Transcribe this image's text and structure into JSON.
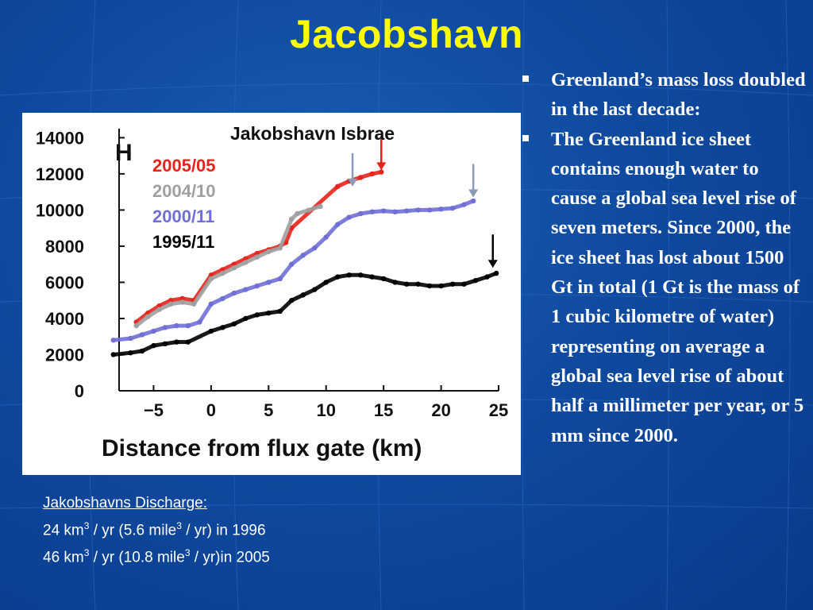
{
  "slide": {
    "title": "Jacobshavn"
  },
  "chart_data": {
    "type": "scatter",
    "panel_label": "H",
    "title": "Jakobshavn Isbrae",
    "xlabel": "Distance from flux gate (km)",
    "ylabel": "",
    "xlim": [
      -8,
      25
    ],
    "ylim": [
      0,
      14500
    ],
    "xticks": [
      "−5",
      "0",
      "5",
      "10",
      "15",
      "20",
      "25"
    ],
    "yticks": [
      "14000",
      "12000",
      "10000",
      "8000",
      "6000",
      "4000",
      "2000",
      "0"
    ],
    "series": [
      {
        "name": "2005/05",
        "color": "#e8231c",
        "x": [
          -6.5,
          -5.5,
          -4.5,
          -3.5,
          -2.5,
          -1.5,
          0,
          1,
          2,
          3,
          4,
          5,
          6,
          6.5,
          7,
          11,
          12,
          13,
          14,
          14.8
        ],
        "y": [
          3800,
          4300,
          4700,
          5000,
          5100,
          5000,
          6400,
          6700,
          7000,
          7300,
          7600,
          7800,
          8000,
          8200,
          9000,
          11300,
          11600,
          11800,
          12000,
          12100
        ]
      },
      {
        "name": "2004/10",
        "color": "#a0a0a0",
        "x": [
          -6.5,
          -5.5,
          -4.5,
          -3.5,
          -2.5,
          -1.5,
          0,
          1,
          2,
          3,
          4,
          5,
          6,
          7,
          7.5,
          8.5,
          9.5
        ],
        "y": [
          3600,
          4100,
          4500,
          4800,
          4900,
          4800,
          6200,
          6500,
          6800,
          7100,
          7400,
          7700,
          7900,
          9500,
          9800,
          10000,
          10200
        ]
      },
      {
        "name": "2000/11",
        "color": "#6f6fd6",
        "x": [
          -8.5,
          -7,
          -6,
          -5,
          -4,
          -3,
          -2,
          -1,
          0,
          1,
          2,
          3,
          4,
          5,
          6,
          7,
          8,
          9,
          10,
          11,
          12,
          13,
          14,
          15,
          16,
          17,
          18,
          19,
          20,
          21,
          22,
          22.8
        ],
        "y": [
          2800,
          2900,
          3100,
          3300,
          3500,
          3600,
          3600,
          3800,
          4800,
          5100,
          5400,
          5600,
          5800,
          6000,
          6200,
          7000,
          7500,
          7900,
          8500,
          9200,
          9600,
          9800,
          9900,
          9950,
          9900,
          9950,
          10000,
          10000,
          10050,
          10100,
          10300,
          10500
        ]
      },
      {
        "name": "1995/11",
        "color": "#000000",
        "x": [
          -8.5,
          -7,
          -6,
          -5,
          -4,
          -3,
          -2,
          0,
          1,
          2,
          3,
          4,
          5,
          6,
          7,
          8,
          9,
          10,
          11,
          12,
          13,
          14,
          15,
          16,
          17,
          18,
          19,
          20,
          21,
          22,
          23,
          24,
          24.8
        ],
        "y": [
          2000,
          2100,
          2200,
          2500,
          2600,
          2700,
          2700,
          3300,
          3500,
          3700,
          4000,
          4200,
          4300,
          4400,
          5000,
          5300,
          5600,
          6000,
          6300,
          6400,
          6400,
          6300,
          6200,
          6000,
          5900,
          5900,
          5800,
          5800,
          5900,
          5900,
          6100,
          6300,
          6500
        ]
      }
    ],
    "legend_position": "top-left",
    "annotations": "arrows marking flux gate positions above the 2004/10, 2005/05, 2000/11 and 1995/11 profiles"
  },
  "discharge": {
    "heading": "Jakobshavns  Discharge:",
    "line1_a": "24 km",
    "sup1": "3",
    "line1_b": " / yr (5.6 mile",
    "sup2": "3",
    "line1_c": " / yr) in 1996",
    "line2_a": "46 km",
    "sup3": "3",
    "line2_b": " / yr (10.8 mile",
    "sup4": "3",
    "line2_c": " / yr)in  2005"
  },
  "bullets": [
    "Greenland’s mass loss doubled in the last decade:",
    "The Greenland ice sheet contains enough water to cause a global sea level rise of seven meters. Since 2000, the ice sheet has lost about 1500 Gt in total (1 Gt is the mass of 1 cubic kilometre of water) representing on average a global sea level rise of about half a millimeter per year, or 5 mm since 2000."
  ]
}
